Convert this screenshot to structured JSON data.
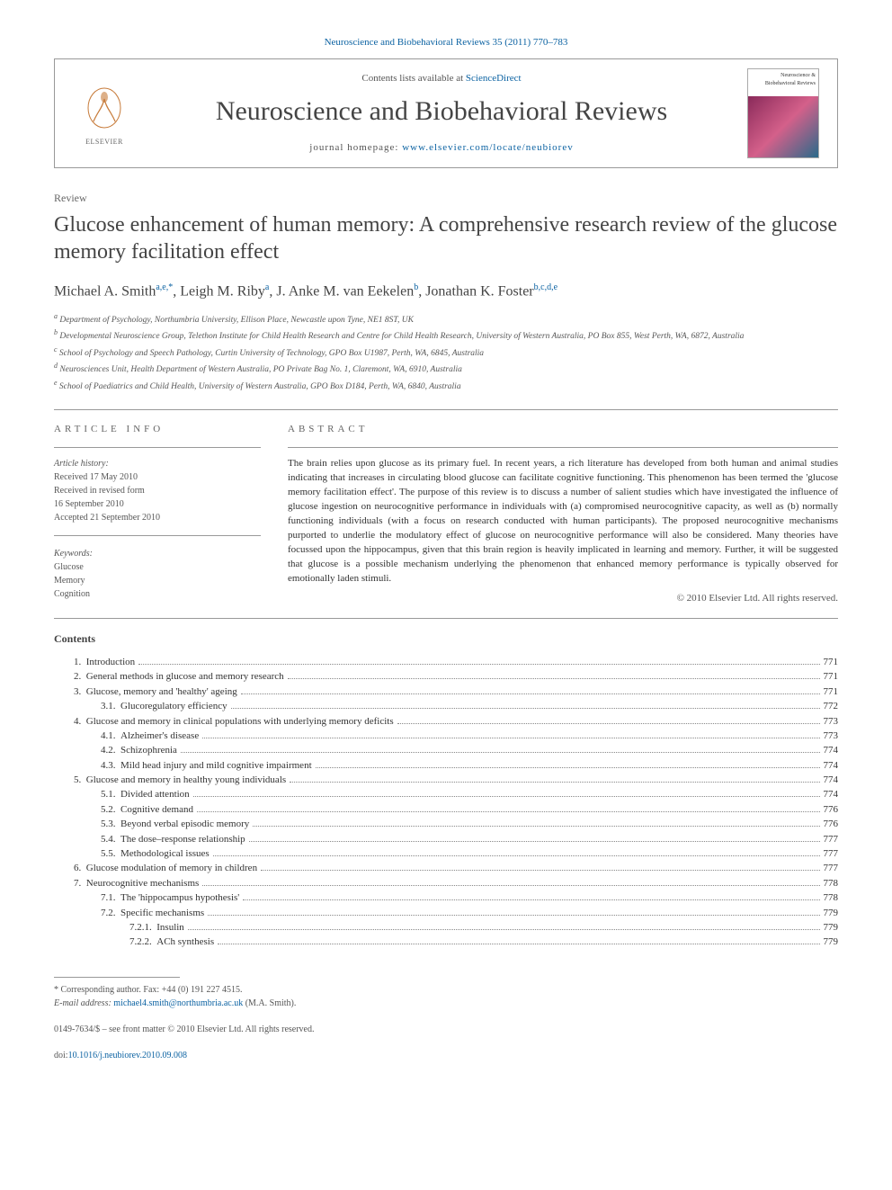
{
  "citation": "Neuroscience and Biobehavioral Reviews 35 (2011) 770–783",
  "contents_available": "Contents lists available at ",
  "sciencedirect": "ScienceDirect",
  "journal_name": "Neuroscience and Biobehavioral Reviews",
  "homepage_label": "journal homepage: ",
  "homepage_url": "www.elsevier.com/locate/neubiorev",
  "cover_top": "Neuroscience & Biobehavioral Reviews",
  "article_type": "Review",
  "title": "Glucose enhancement of human memory: A comprehensive research review of the glucose memory facilitation effect",
  "authors": [
    {
      "name": "Michael A. Smith",
      "sup": "a,e,*"
    },
    {
      "name": "Leigh M. Riby",
      "sup": "a"
    },
    {
      "name": "J. Anke M. van Eekelen",
      "sup": "b"
    },
    {
      "name": "Jonathan K. Foster",
      "sup": "b,c,d,e"
    }
  ],
  "affiliations": [
    {
      "sup": "a",
      "text": "Department of Psychology, Northumbria University, Ellison Place, Newcastle upon Tyne, NE1 8ST, UK"
    },
    {
      "sup": "b",
      "text": "Developmental Neuroscience Group, Telethon Institute for Child Health Research and Centre for Child Health Research, University of Western Australia, PO Box 855, West Perth, WA, 6872, Australia"
    },
    {
      "sup": "c",
      "text": "School of Psychology and Speech Pathology, Curtin University of Technology, GPO Box U1987, Perth, WA, 6845, Australia"
    },
    {
      "sup": "d",
      "text": "Neurosciences Unit, Health Department of Western Australia, PO Private Bag No. 1, Claremont, WA, 6910, Australia"
    },
    {
      "sup": "e",
      "text": "School of Paediatrics and Child Health, University of Western Australia, GPO Box D184, Perth, WA, 6840, Australia"
    }
  ],
  "info_heading": "ARTICLE INFO",
  "abstract_heading": "ABSTRACT",
  "history_label": "Article history:",
  "history": [
    "Received 17 May 2010",
    "Received in revised form",
    "16 September 2010",
    "Accepted 21 September 2010"
  ],
  "keywords_label": "Keywords:",
  "keywords": [
    "Glucose",
    "Memory",
    "Cognition"
  ],
  "abstract": "The brain relies upon glucose as its primary fuel. In recent years, a rich literature has developed from both human and animal studies indicating that increases in circulating blood glucose can facilitate cognitive functioning. This phenomenon has been termed the 'glucose memory facilitation effect'. The purpose of this review is to discuss a number of salient studies which have investigated the influence of glucose ingestion on neurocognitive performance in individuals with (a) compromised neurocognitive capacity, as well as (b) normally functioning individuals (with a focus on research conducted with human participants). The proposed neurocognitive mechanisms purported to underlie the modulatory effect of glucose on neurocognitive performance will also be considered. Many theories have focussed upon the hippocampus, given that this brain region is heavily implicated in learning and memory. Further, it will be suggested that glucose is a possible mechanism underlying the phenomenon that enhanced memory performance is typically observed for emotionally laden stimuli.",
  "copyright": "© 2010 Elsevier Ltd. All rights reserved.",
  "contents_heading": "Contents",
  "toc": [
    {
      "level": 1,
      "num": "1.",
      "title": "Introduction",
      "page": "771"
    },
    {
      "level": 1,
      "num": "2.",
      "title": "General methods in glucose and memory research",
      "page": "771"
    },
    {
      "level": 1,
      "num": "3.",
      "title": "Glucose, memory and 'healthy' ageing",
      "page": "771"
    },
    {
      "level": 2,
      "num": "3.1.",
      "title": "Glucoregulatory efficiency",
      "page": "772"
    },
    {
      "level": 1,
      "num": "4.",
      "title": "Glucose and memory in clinical populations with underlying memory deficits",
      "page": "773"
    },
    {
      "level": 2,
      "num": "4.1.",
      "title": "Alzheimer's disease",
      "page": "773"
    },
    {
      "level": 2,
      "num": "4.2.",
      "title": "Schizophrenia",
      "page": "774"
    },
    {
      "level": 2,
      "num": "4.3.",
      "title": "Mild head injury and mild cognitive impairment",
      "page": "774"
    },
    {
      "level": 1,
      "num": "5.",
      "title": "Glucose and memory in healthy young individuals",
      "page": "774"
    },
    {
      "level": 2,
      "num": "5.1.",
      "title": "Divided attention",
      "page": "774"
    },
    {
      "level": 2,
      "num": "5.2.",
      "title": "Cognitive demand",
      "page": "776"
    },
    {
      "level": 2,
      "num": "5.3.",
      "title": "Beyond verbal episodic memory",
      "page": "776"
    },
    {
      "level": 2,
      "num": "5.4.",
      "title": "The dose–response relationship",
      "page": "777"
    },
    {
      "level": 2,
      "num": "5.5.",
      "title": "Methodological issues",
      "page": "777"
    },
    {
      "level": 1,
      "num": "6.",
      "title": "Glucose modulation of memory in children",
      "page": "777"
    },
    {
      "level": 1,
      "num": "7.",
      "title": "Neurocognitive mechanisms",
      "page": "778"
    },
    {
      "level": 2,
      "num": "7.1.",
      "title": "The 'hippocampus hypothesis'",
      "page": "778"
    },
    {
      "level": 2,
      "num": "7.2.",
      "title": "Specific mechanisms",
      "page": "779"
    },
    {
      "level": 3,
      "num": "7.2.1.",
      "title": "Insulin",
      "page": "779"
    },
    {
      "level": 3,
      "num": "7.2.2.",
      "title": "ACh synthesis",
      "page": "779"
    }
  ],
  "corr_author": "Corresponding author. Fax: +44 (0) 191 227 4515.",
  "email_label": "E-mail address:",
  "email": "michael4.smith@northumbria.ac.uk",
  "email_author": "(M.A. Smith).",
  "issn_line": "0149-7634/$ – see front matter © 2010 Elsevier Ltd. All rights reserved.",
  "doi_label": "doi:",
  "doi": "10.1016/j.neubiorev.2010.09.008",
  "colors": {
    "link": "#0b62a2",
    "text": "#222222",
    "muted": "#555555",
    "border": "#999999"
  }
}
